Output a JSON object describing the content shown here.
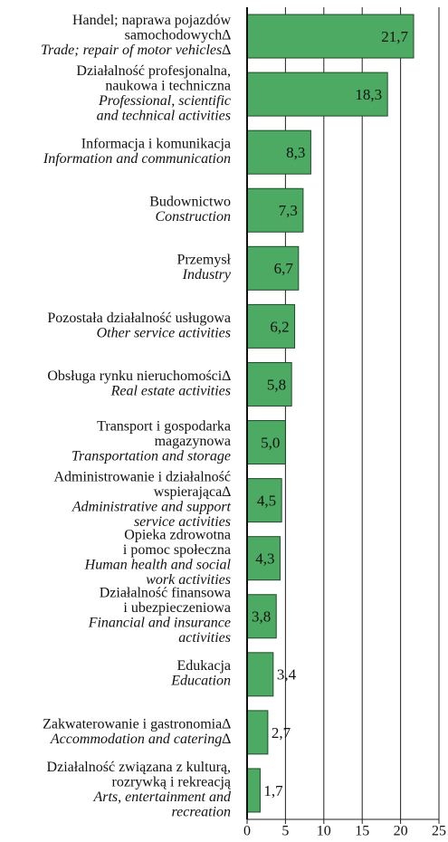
{
  "chart_data": {
    "type": "bar",
    "orientation": "horizontal",
    "categories": [
      {
        "pl": [
          "Handel; naprawa pojazdów",
          "samochodowych∆"
        ],
        "en": [
          "Trade; repair of motor vehicles∆"
        ]
      },
      {
        "pl": [
          "Działalność profesjonalna,",
          "naukowa i techniczna"
        ],
        "en": [
          "Professional, scientific",
          "and technical activities"
        ]
      },
      {
        "pl": [
          "Informacja i komunikacja"
        ],
        "en": [
          "Information and communication"
        ]
      },
      {
        "pl": [
          "Budownictwo"
        ],
        "en": [
          "Construction"
        ]
      },
      {
        "pl": [
          "Przemysł"
        ],
        "en": [
          "Industry"
        ]
      },
      {
        "pl": [
          "Pozostała działalność usługowa"
        ],
        "en": [
          "Other service activities"
        ]
      },
      {
        "pl": [
          "Obsługa rynku nieruchomości∆"
        ],
        "en": [
          "Real estate activities"
        ]
      },
      {
        "pl": [
          "Transport i gospodarka",
          "magazynowa"
        ],
        "en": [
          "Transportation and storage"
        ]
      },
      {
        "pl": [
          "Administrowanie i działalność",
          "wspierająca∆"
        ],
        "en": [
          "Administrative and support",
          "service activities"
        ]
      },
      {
        "pl": [
          "Opieka zdrowotna",
          "i pomoc społeczna"
        ],
        "en": [
          "Human health and social",
          "work activities"
        ]
      },
      {
        "pl": [
          "Działalność finansowa",
          "i ubezpieczeniowa"
        ],
        "en": [
          "Financial and insurance",
          "activities"
        ]
      },
      {
        "pl": [
          "Edukacja"
        ],
        "en": [
          "Education"
        ]
      },
      {
        "pl": [
          "Zakwaterowanie i gastronomia∆"
        ],
        "en": [
          "Accommodation and catering∆"
        ]
      },
      {
        "pl": [
          "Działalność związana z kulturą,",
          "rozrywką i rekreacją"
        ],
        "en": [
          "Arts, entertainment and",
          "recreation"
        ]
      }
    ],
    "values": [
      21.7,
      18.3,
      8.3,
      7.3,
      6.7,
      6.2,
      5.8,
      5.0,
      4.5,
      4.3,
      3.8,
      3.4,
      2.7,
      1.7
    ],
    "value_labels": [
      "21,7",
      "18,3",
      "8,3",
      "7,3",
      "6,7",
      "6,2",
      "5,8",
      "5,0",
      "4,5",
      "4,3",
      "3,8",
      "3,4",
      "2,7",
      "1,7"
    ],
    "color": "#4caa62",
    "xlim": [
      0,
      25
    ],
    "xticks": [
      0,
      5,
      10,
      15,
      20,
      25
    ],
    "grid": true
  }
}
